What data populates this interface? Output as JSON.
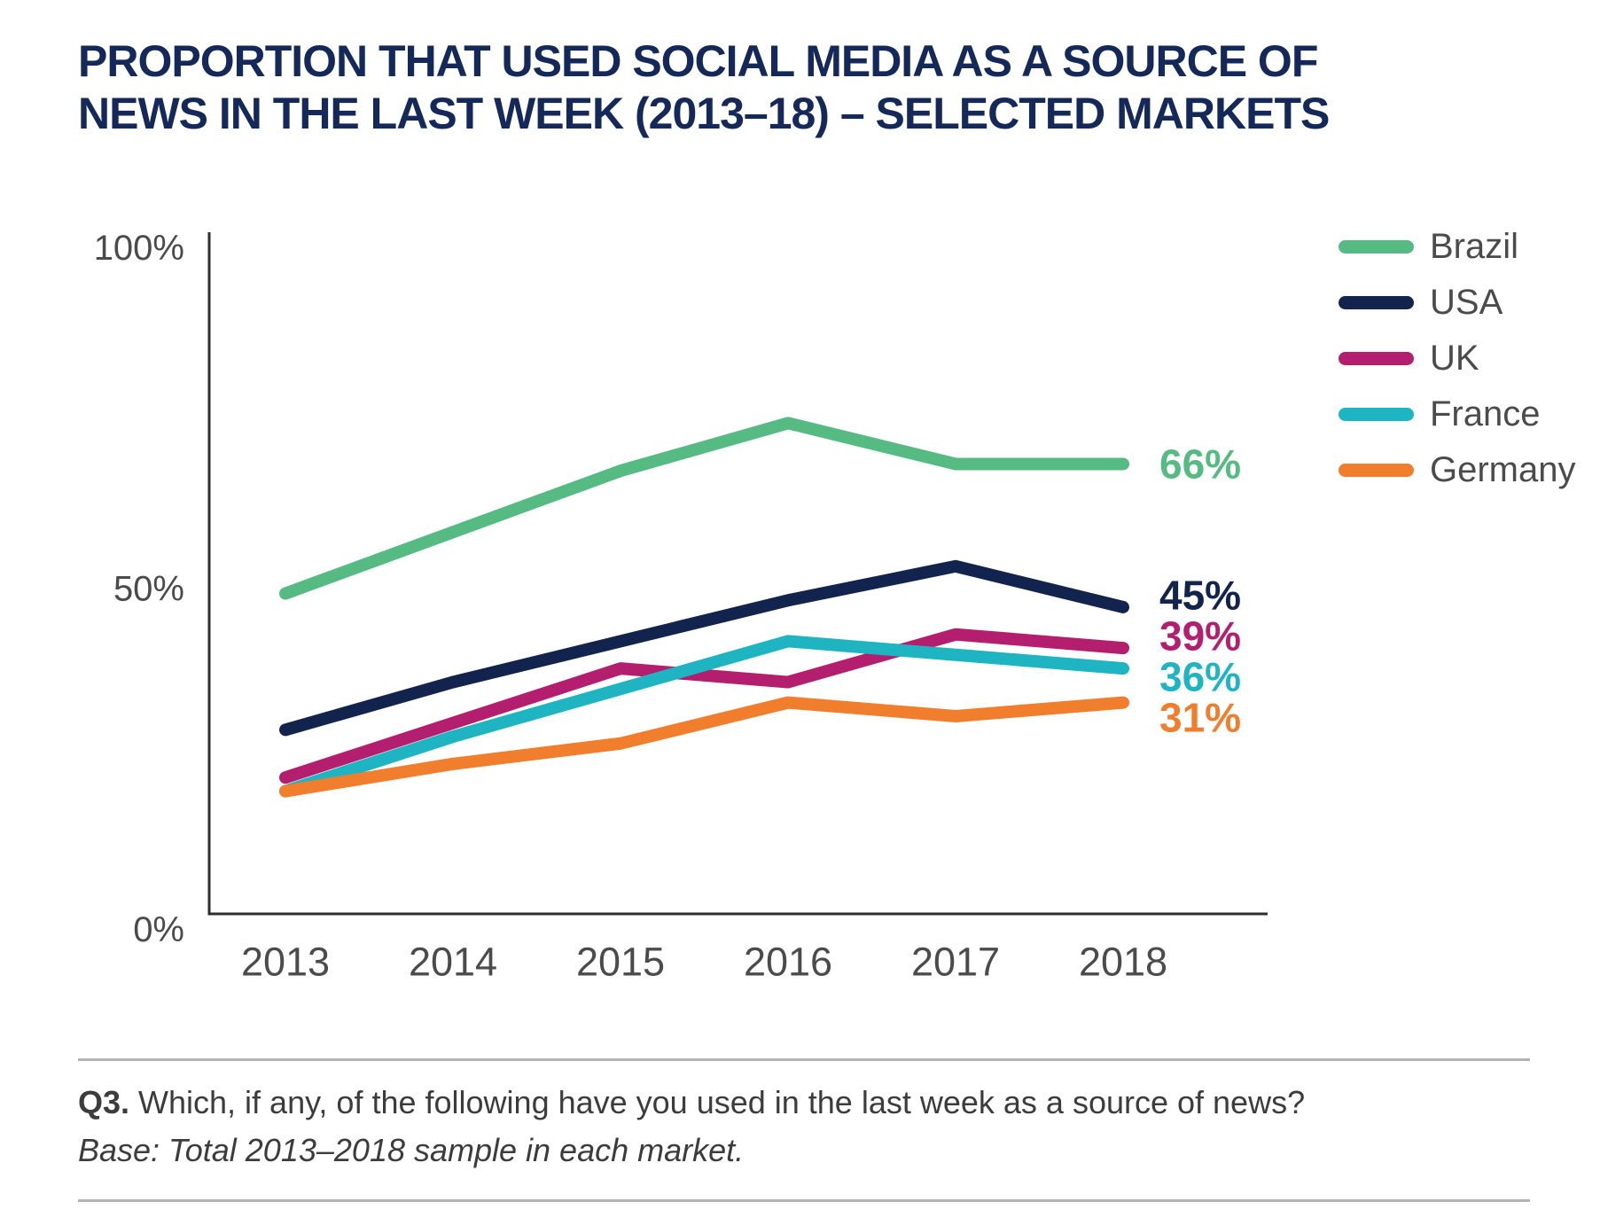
{
  "title": "PROPORTION THAT USED SOCIAL MEDIA AS A SOURCE OF\nNEWS IN THE LAST WEEK (2013–18) – SELECTED MARKETS",
  "chart_data": {
    "type": "line",
    "categories": [
      "2013",
      "2014",
      "2015",
      "2016",
      "2017",
      "2018"
    ],
    "series": [
      {
        "name": "Brazil",
        "color": "#56ba83",
        "values": [
          47,
          56,
          65,
          72,
          66,
          66
        ],
        "end_label": "66%"
      },
      {
        "name": "USA",
        "color": "#12234e",
        "values": [
          27,
          34,
          40,
          46,
          51,
          45
        ],
        "end_label": "45%"
      },
      {
        "name": "UK",
        "color": "#b41e6f",
        "values": [
          20,
          28,
          36,
          34,
          41,
          39
        ],
        "end_label": "39%"
      },
      {
        "name": "France",
        "color": "#1eb4c2",
        "values": [
          18,
          26,
          33,
          40,
          38,
          36
        ],
        "end_label": "36%"
      },
      {
        "name": "Germany",
        "color": "#f07e2d",
        "values": [
          18,
          22,
          25,
          31,
          29,
          31
        ],
        "end_label": "31%"
      }
    ],
    "y_ticks": [
      {
        "label": "100%",
        "value": 100
      },
      {
        "label": "50%",
        "value": 50
      },
      {
        "label": "0%",
        "value": 0
      }
    ],
    "ylim": [
      0,
      100
    ],
    "grid": false,
    "legend_position": "right"
  },
  "footer": {
    "q_label": "Q3.",
    "question": " Which, if any, of the following have you used in the last week as a source of news?",
    "base": "Base: Total 2013–2018 sample in each market."
  },
  "colors": {
    "title_text": "#14295a",
    "axis_line": "#2e2e2e",
    "tick_text": "#4b4b4b",
    "legend_text": "#4b4b4b",
    "footer_text": "#3c3c3c",
    "divider": "#b3b3b3"
  }
}
